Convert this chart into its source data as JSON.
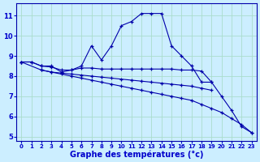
{
  "xlabel": "Graphe des températures (°c)",
  "background_color": "#cceeff",
  "grid_color": "#aaddcc",
  "line_color": "#0000aa",
  "xlim": [
    -0.5,
    23.5
  ],
  "ylim": [
    4.8,
    11.6
  ],
  "yticks": [
    5,
    6,
    7,
    8,
    9,
    10,
    11
  ],
  "xticks": [
    0,
    1,
    2,
    3,
    4,
    5,
    6,
    7,
    8,
    9,
    10,
    11,
    12,
    13,
    14,
    15,
    16,
    17,
    18,
    19,
    20,
    21,
    22,
    23
  ],
  "line1_x": [
    0,
    1,
    2,
    3,
    4,
    5,
    6,
    7,
    8,
    9,
    10,
    11,
    12,
    13,
    14,
    15,
    16,
    17,
    18,
    19,
    20,
    21,
    22,
    23
  ],
  "line1_y": [
    8.7,
    8.7,
    8.5,
    8.5,
    8.2,
    8.3,
    8.5,
    9.5,
    8.8,
    9.5,
    10.5,
    10.7,
    11.1,
    11.1,
    11.1,
    9.5,
    9.0,
    8.5,
    7.7,
    7.7,
    7.0,
    6.3,
    5.5,
    5.2
  ],
  "line2_x": [
    0,
    1,
    2,
    3,
    4,
    5,
    6,
    7,
    8,
    9,
    10,
    11,
    12,
    13,
    14,
    15,
    16,
    17,
    18,
    19
  ],
  "line2_y": [
    8.7,
    8.7,
    8.5,
    8.45,
    8.3,
    8.3,
    8.4,
    8.4,
    8.35,
    8.35,
    8.35,
    8.35,
    8.35,
    8.35,
    8.35,
    8.35,
    8.3,
    8.3,
    8.25,
    7.7
  ],
  "line3_x": [
    0,
    2,
    3,
    4,
    5,
    6,
    7,
    8,
    9,
    10,
    11,
    12,
    13,
    14,
    15,
    16,
    17,
    18,
    19,
    20,
    21,
    22,
    23
  ],
  "line3_y": [
    8.7,
    8.3,
    8.2,
    8.1,
    8.0,
    7.9,
    7.8,
    7.7,
    7.6,
    7.5,
    7.4,
    7.3,
    7.2,
    7.1,
    7.0,
    6.9,
    6.8,
    6.6,
    6.4,
    6.2,
    5.9,
    5.6,
    5.2
  ],
  "line4_x": [
    2,
    3,
    4,
    5,
    6,
    7,
    8,
    9,
    10,
    11,
    12,
    13,
    14,
    15,
    16,
    17,
    18,
    19
  ],
  "line4_y": [
    8.3,
    8.2,
    8.15,
    8.1,
    8.05,
    8.0,
    7.95,
    7.9,
    7.85,
    7.8,
    7.75,
    7.7,
    7.65,
    7.6,
    7.55,
    7.5,
    7.4,
    7.3
  ]
}
